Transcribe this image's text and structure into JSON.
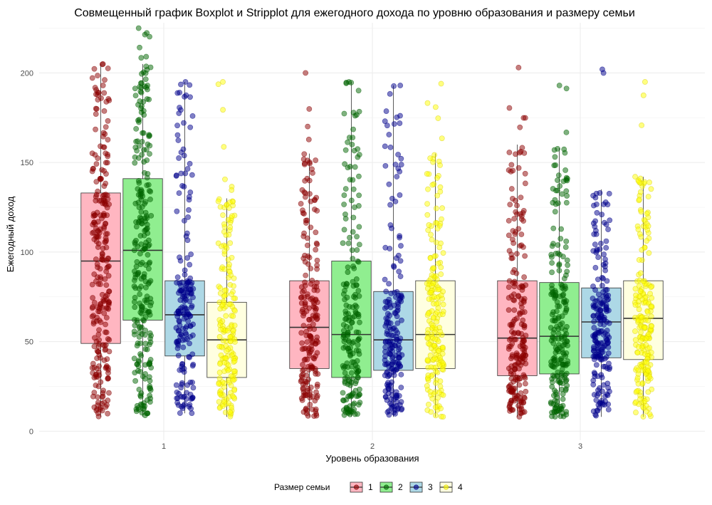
{
  "chart_data": {
    "type": "boxplot+stripplot",
    "title": "Совмещенный график Boxplot и Stripplot для ежегодного дохода по уровню образования и размеру семьи",
    "xlabel": "Уровень образования",
    "ylabel": "Ежегодный доход",
    "categories": [
      "1",
      "2",
      "3"
    ],
    "ylim": [
      -5,
      228
    ],
    "yticks": [
      0,
      50,
      100,
      150,
      200
    ],
    "grid": true,
    "legend": {
      "title": "Размер семьи",
      "position": "bottom",
      "entries": [
        "1",
        "2",
        "3",
        "4"
      ]
    },
    "series": [
      {
        "name": "1",
        "box_fill": "#ffb6c1",
        "point_color": "#8b0000",
        "boxes": [
          {
            "category": "1",
            "whisker_low": 8,
            "q1": 49,
            "median": 95,
            "q3": 133,
            "whisker_high": 205,
            "point_max": 205,
            "count": 260
          },
          {
            "category": "2",
            "whisker_low": 8,
            "q1": 35,
            "median": 58,
            "q3": 84,
            "whisker_high": 155,
            "point_max": 200,
            "count": 200
          },
          {
            "category": "3",
            "whisker_low": 8,
            "q1": 31,
            "median": 52,
            "q3": 84,
            "whisker_high": 160,
            "point_max": 203,
            "count": 220
          }
        ]
      },
      {
        "name": "2",
        "box_fill": "#90ee90",
        "point_color": "#006400",
        "boxes": [
          {
            "category": "1",
            "whisker_low": 8,
            "q1": 62,
            "median": 101,
            "q3": 141,
            "whisker_high": 205,
            "point_max": 225,
            "count": 260
          },
          {
            "category": "2",
            "whisker_low": 8,
            "q1": 30,
            "median": 54,
            "q3": 95,
            "whisker_high": 195,
            "point_max": 195,
            "count": 200
          },
          {
            "category": "3",
            "whisker_low": 8,
            "q1": 32,
            "median": 53,
            "q3": 83,
            "whisker_high": 158,
            "point_max": 193,
            "count": 220
          }
        ]
      },
      {
        "name": "3",
        "box_fill": "#add8e6",
        "point_color": "#00008b",
        "boxes": [
          {
            "category": "1",
            "whisker_low": 10,
            "q1": 42,
            "median": 65,
            "q3": 84,
            "whisker_high": 195,
            "point_max": 195,
            "count": 190
          },
          {
            "category": "2",
            "whisker_low": 8,
            "q1": 34,
            "median": 51,
            "q3": 78,
            "whisker_high": 193,
            "point_max": 193,
            "count": 200
          },
          {
            "category": "3",
            "whisker_low": 8,
            "q1": 41,
            "median": 61,
            "q3": 80,
            "whisker_high": 135,
            "point_max": 202,
            "count": 210
          }
        ]
      },
      {
        "name": "4",
        "box_fill": "#ffffe0",
        "point_color": "#ffff00",
        "boxes": [
          {
            "category": "1",
            "whisker_low": 8,
            "q1": 30,
            "median": 51,
            "q3": 72,
            "whisker_high": 130,
            "point_max": 195,
            "count": 190
          },
          {
            "category": "2",
            "whisker_low": 8,
            "q1": 35,
            "median": 54,
            "q3": 84,
            "whisker_high": 155,
            "point_max": 194,
            "count": 200
          },
          {
            "category": "3",
            "whisker_low": 8,
            "q1": 40,
            "median": 63,
            "q3": 84,
            "whisker_high": 142,
            "point_max": 195,
            "count": 210
          }
        ]
      }
    ]
  }
}
